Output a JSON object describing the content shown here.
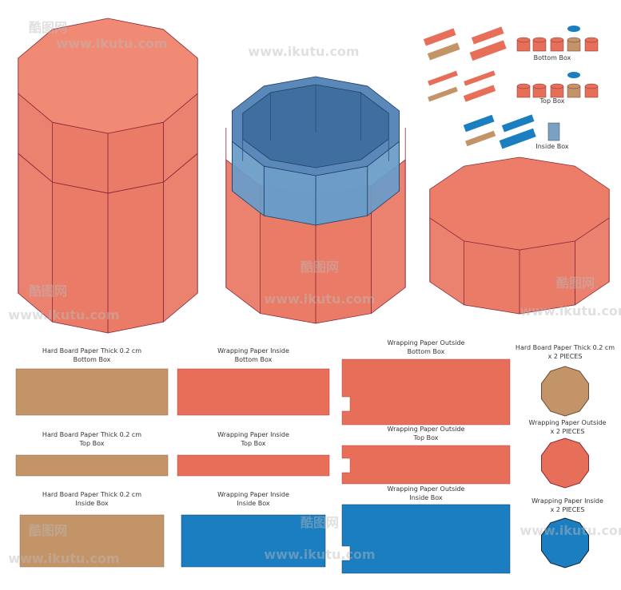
{
  "legend": {
    "items": [
      "Bottom Box",
      "Top Box",
      "Inside Box"
    ]
  },
  "dielines": {
    "rows": [
      [
        {
          "title": "Hard Board Paper Thick 0.2 cm",
          "subtitle": "Bottom Box"
        },
        {
          "title": "Wrapping Paper Inside",
          "subtitle": "Bottom Box"
        },
        {
          "title": "Wrapping Paper Outside",
          "subtitle": "Bottom Box"
        },
        {
          "title": "Hard Board Paper Thick 0.2 cm",
          "subtitle": "x 2 PIECES"
        }
      ],
      [
        {
          "title": "Hard Board Paper Thick 0.2 cm",
          "subtitle": "Top Box"
        },
        {
          "title": "Wrapping Paper Inside",
          "subtitle": "Top Box"
        },
        {
          "title": "Wrapping Paper Outside",
          "subtitle": "Top Box"
        },
        {
          "title": "Wrapping Paper Outside",
          "subtitle": "x 2 PIECES"
        }
      ],
      [
        {
          "title": "Hard Board Paper Thick 0.2 cm",
          "subtitle": "Inside Box"
        },
        {
          "title": "Wrapping Paper Inside",
          "subtitle": "Inside Box"
        },
        {
          "title": "Wrapping Paper Outside",
          "subtitle": "Inside Box"
        },
        {
          "title": "Wrapping Paper Inside",
          "subtitle": "x 2 PIECES"
        }
      ]
    ]
  },
  "watermark": {
    "logo": "酷图网",
    "url": "www.ikutu.com"
  }
}
